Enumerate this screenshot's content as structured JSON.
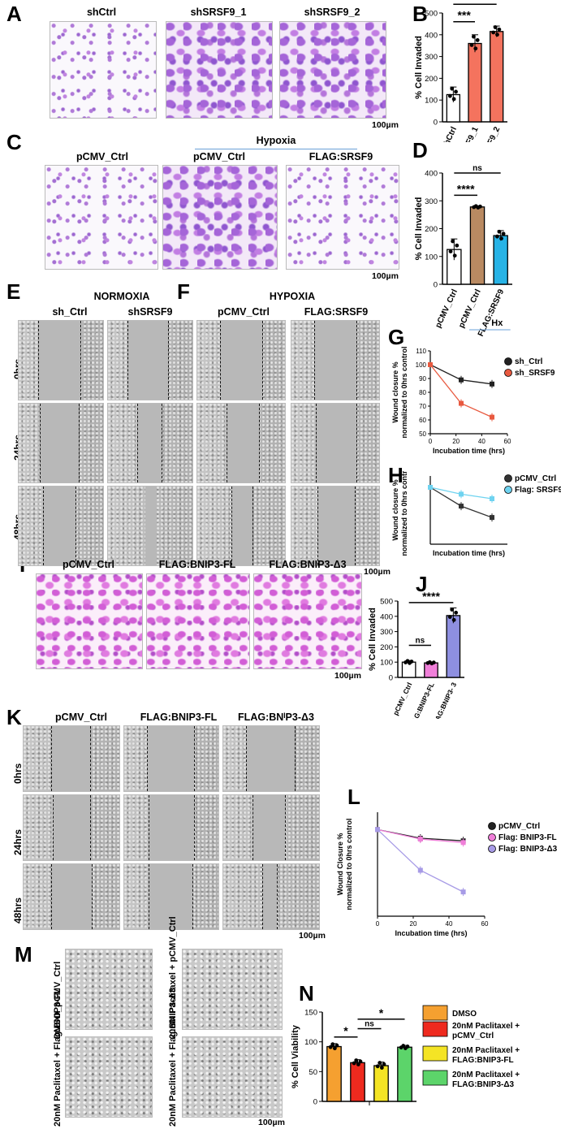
{
  "panel_letters": [
    "A",
    "B",
    "C",
    "D",
    "E",
    "F",
    "G",
    "H",
    "I",
    "J",
    "K",
    "L",
    "M",
    "N"
  ],
  "panelA": {
    "labels": [
      "shCtrl",
      "shSRSF9_1",
      "shSRSF9_2"
    ],
    "scale": "100µm"
  },
  "panelC": {
    "group": "Hypoxia",
    "labels": [
      "pCMV_Ctrl",
      "pCMV_Ctrl",
      "FLAG:SRSF9"
    ],
    "scale": "100µm"
  },
  "panelE": {
    "condition": "NORMOXIA",
    "labels": [
      "sh_Ctrl",
      "shSRSF9"
    ],
    "rows": [
      "0hrs",
      "24hrs",
      "48hrs"
    ]
  },
  "panelF": {
    "condition": "HYPOXIA",
    "labels": [
      "pCMV_Ctrl",
      "FLAG:SRSF9"
    ],
    "scale": "100µm"
  },
  "panelI": {
    "labels": [
      "pCMV_Ctrl",
      "FLAG:BNIP3-FL",
      "FLAG:BNIP3-Δ3"
    ],
    "scale": "100µm"
  },
  "panelK": {
    "labels": [
      "pCMV_Ctrl",
      "FLAG:BNIP3-FL",
      "FLAG:BNᴵP3-Δ3"
    ],
    "rows": [
      "0hrs",
      "24hrs",
      "48hrs"
    ],
    "scale": "100µm"
  },
  "panelM": {
    "labels": [
      "DMSO_pCMV_Ctrl",
      "20nM Paclitaxel + pCMV_Ctrl",
      "20nM Paclitaxel + Flag:BNIP3-FL",
      "20nM Paclitaxel + Flag:BNIP3-Δ3"
    ],
    "scale": "100µm"
  },
  "chart_data": [
    {
      "id": "B",
      "type": "bar",
      "ylabel": "% Cell Invaded",
      "ylim": [
        0,
        500
      ],
      "yticks": [
        0,
        100,
        200,
        300,
        400,
        500
      ],
      "categories": [
        "shCtrl",
        "shSRSF9_1",
        "shSRSF9_2"
      ],
      "values": [
        125,
        360,
        415
      ],
      "errors": [
        35,
        40,
        25
      ],
      "colors": [
        "#ffffff",
        "#f4735e",
        "#f4735e"
      ],
      "significance": [
        "***",
        "****"
      ]
    },
    {
      "id": "D",
      "type": "bar",
      "ylabel": "% Cell Invaded",
      "ylim": [
        0,
        400
      ],
      "yticks": [
        0,
        100,
        200,
        300,
        400
      ],
      "categories": [
        "pCMV_Ctrl",
        "pCMV_Ctrl",
        "FLAG:SRSF9"
      ],
      "values": [
        125,
        278,
        175
      ],
      "errors": [
        38,
        4,
        18
      ],
      "colors": [
        "#ffffff",
        "#b98a62",
        "#27b3e6"
      ],
      "group_label": "Hx",
      "significance": [
        "****",
        "ns"
      ]
    },
    {
      "id": "G",
      "type": "line",
      "xlabel": "Incubation time (hrs)",
      "ylabel": "Wound closure % normalized to 0hrs control",
      "xlim": [
        0,
        60
      ],
      "ylim": [
        50,
        110
      ],
      "xticks": [
        0,
        20,
        40,
        60
      ],
      "yticks": [
        50,
        60,
        70,
        80,
        90,
        100,
        110
      ],
      "x": [
        0,
        24,
        48
      ],
      "series": [
        {
          "name": "sh_Ctrl",
          "values": [
            100,
            89,
            86
          ],
          "color": "#222222"
        },
        {
          "name": "sh_SRSF9",
          "values": [
            100,
            72,
            62
          ],
          "color": "#e8593f"
        }
      ]
    },
    {
      "id": "H",
      "type": "line",
      "xlabel": "Incubation time (hrs)",
      "ylabel": "Wound closure % normalized to 0hrs control",
      "xlim": [
        0,
        60
      ],
      "ylim": [
        0,
        120
      ],
      "x": [
        0,
        24,
        48
      ],
      "series": [
        {
          "name": "pCMV_Ctrl",
          "values": [
            100,
            67,
            47
          ],
          "color": "#333333"
        },
        {
          "name": "Flag: SRSF9",
          "values": [
            100,
            88,
            80
          ],
          "color": "#6fd3f0"
        }
      ]
    },
    {
      "id": "J",
      "type": "bar",
      "ylabel": "% Cell Invaded",
      "ylim": [
        0,
        500
      ],
      "yticks": [
        0,
        100,
        200,
        300,
        400,
        500
      ],
      "categories": [
        "pCMV_Ctrl",
        "FLAG:BNIP3-FL",
        "FLAG:BNIP3- 3"
      ],
      "values": [
        100,
        95,
        405
      ],
      "errors": [
        10,
        6,
        50
      ],
      "colors": [
        "#ffffff",
        "#f07fd9",
        "#8e8fe0"
      ],
      "significance": [
        "ns",
        "****"
      ]
    },
    {
      "id": "L",
      "type": "line",
      "xlabel": "Incubation time (hrs)",
      "ylabel": "Wound Closure % normalized to 0hrs control",
      "xlim": [
        0,
        60
      ],
      "ylim": [
        0,
        120
      ],
      "xticks": [
        0,
        20,
        40,
        60
      ],
      "x": [
        0,
        24,
        48
      ],
      "series": [
        {
          "name": "pCMV_Ctrl",
          "values": [
            100,
            90,
            87
          ],
          "color": "#222222"
        },
        {
          "name": "Flag: BNIP3-FL",
          "values": [
            100,
            89,
            85
          ],
          "color": "#f07fd9"
        },
        {
          "name": "Flag: BNIP3-Δ3",
          "values": [
            100,
            53,
            28
          ],
          "color": "#a79be6"
        }
      ]
    },
    {
      "id": "N",
      "type": "bar",
      "ylabel": "% Cell Viability",
      "ylim": [
        0,
        150
      ],
      "yticks": [
        0,
        50,
        100,
        150
      ],
      "categories": [
        "DMSO",
        "20nM Paclitaxel + pCMV_Ctrl",
        "20nM Paclitaxel + FLAG:BNIP3-FL",
        "20nM Paclitaxel + FLAG:BNIP3-Δ3"
      ],
      "values": [
        92,
        65,
        60,
        91
      ],
      "errors": [
        5,
        5,
        6,
        3
      ],
      "colors": [
        "#f5a030",
        "#ee2a1f",
        "#f4e425",
        "#5cd46a"
      ],
      "significance": [
        "*",
        "ns",
        "*"
      ]
    }
  ]
}
